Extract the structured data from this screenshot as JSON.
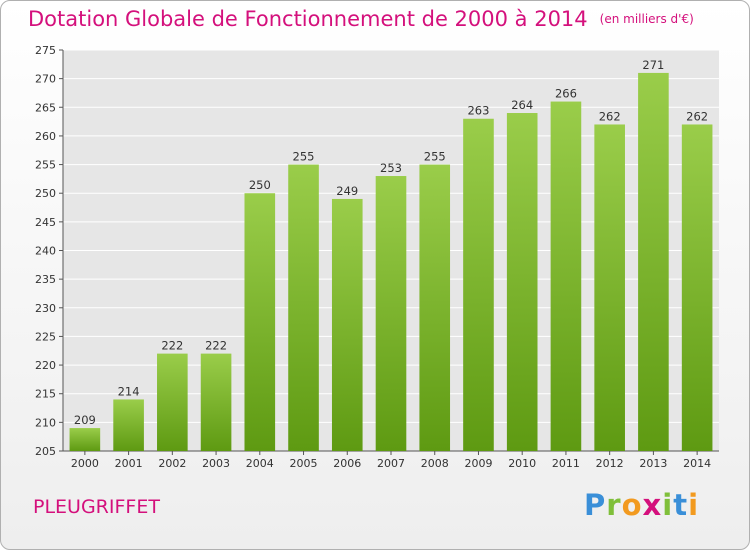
{
  "title": "Dotation Globale de Fonctionnement de 2000 à 2014",
  "unit": "(en milliers d'€)",
  "commune": "PLEUGRIFFET",
  "logo": {
    "text": "Proxiti",
    "letters": [
      {
        "char": "P",
        "color": "#3a8fd8"
      },
      {
        "char": "r",
        "color": "#7fbf3a"
      },
      {
        "char": "o",
        "color": "#f29a1f"
      },
      {
        "char": "x",
        "color": "#d4107c"
      },
      {
        "char": "i",
        "color": "#7fbf3a"
      },
      {
        "char": "t",
        "color": "#3a8fd8"
      },
      {
        "char": "i",
        "color": "#f29a1f"
      }
    ]
  },
  "colors": {
    "title": "#d4107c",
    "bar_top": "#9acd4a",
    "bar_bottom": "#5e9a12",
    "plot_bg": "#e6e6e6",
    "grid": "#ffffff"
  },
  "chart_data": {
    "type": "bar",
    "categories": [
      "2000",
      "2001",
      "2002",
      "2003",
      "2004",
      "2005",
      "2006",
      "2007",
      "2008",
      "2009",
      "2010",
      "2011",
      "2012",
      "2013",
      "2014"
    ],
    "values": [
      209,
      214,
      222,
      222,
      250,
      255,
      249,
      253,
      255,
      263,
      264,
      266,
      262,
      271,
      262
    ],
    "ylim": [
      205,
      275
    ],
    "yticks": [
      205,
      210,
      215,
      220,
      225,
      230,
      235,
      240,
      245,
      250,
      255,
      260,
      265,
      270,
      275
    ],
    "grid": true,
    "data_labels": true
  }
}
